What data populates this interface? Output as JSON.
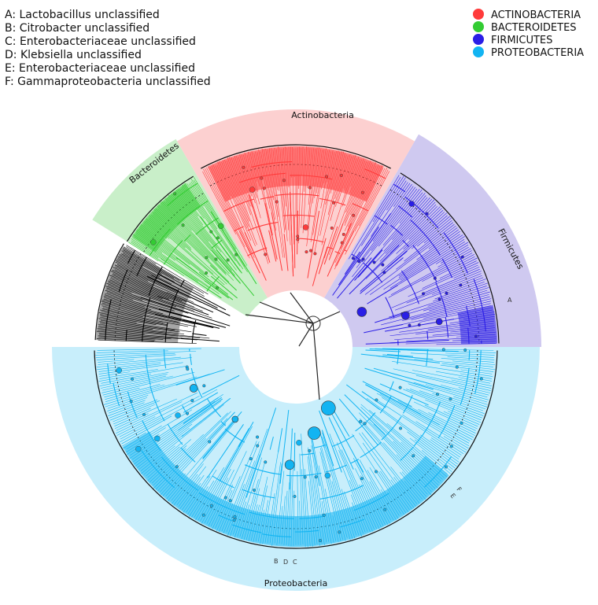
{
  "key_entries": [
    {
      "letter": "A",
      "text": "A: Lactobacillus unclassified"
    },
    {
      "letter": "B",
      "text": "B: Citrobacter unclassified"
    },
    {
      "letter": "C",
      "text": "C: Enterobacteriaceae unclassified"
    },
    {
      "letter": "D",
      "text": "D: Klebsiella unclassified"
    },
    {
      "letter": "E",
      "text": "E: Enterobacteriaceae unclassified"
    },
    {
      "letter": "F",
      "text": "F: Gammaproteobacteria unclassified"
    }
  ],
  "legend": [
    {
      "label": "ACTINOBACTERIA",
      "color": "#ff3b3b"
    },
    {
      "label": "BACTEROIDETES",
      "color": "#33cc33"
    },
    {
      "label": "FIRMICUTES",
      "color": "#2a1ee6"
    },
    {
      "label": "PROTEOBACTERIA",
      "color": "#12b4f2"
    }
  ],
  "clades": {
    "actinobacteria": {
      "label": "Actinobacteria",
      "color": "#ff3b3b",
      "bg": "#fcd0d0"
    },
    "bacteroidetes": {
      "label": "Bacteroidetes",
      "color": "#33cc33",
      "bg": "#c9efc9"
    },
    "firmicutes": {
      "label": "Firmicutes",
      "color": "#2a1ee6",
      "bg": "#cfc9f0"
    },
    "proteobacteria": {
      "label": "Proteobacteria",
      "color": "#12b4f2",
      "bg": "#c8eefb"
    },
    "other": {
      "color": "#000000"
    }
  },
  "leaf_letters": {
    "A": "A",
    "B": "B",
    "C": "C",
    "D": "D",
    "E": "E",
    "F": "F"
  }
}
